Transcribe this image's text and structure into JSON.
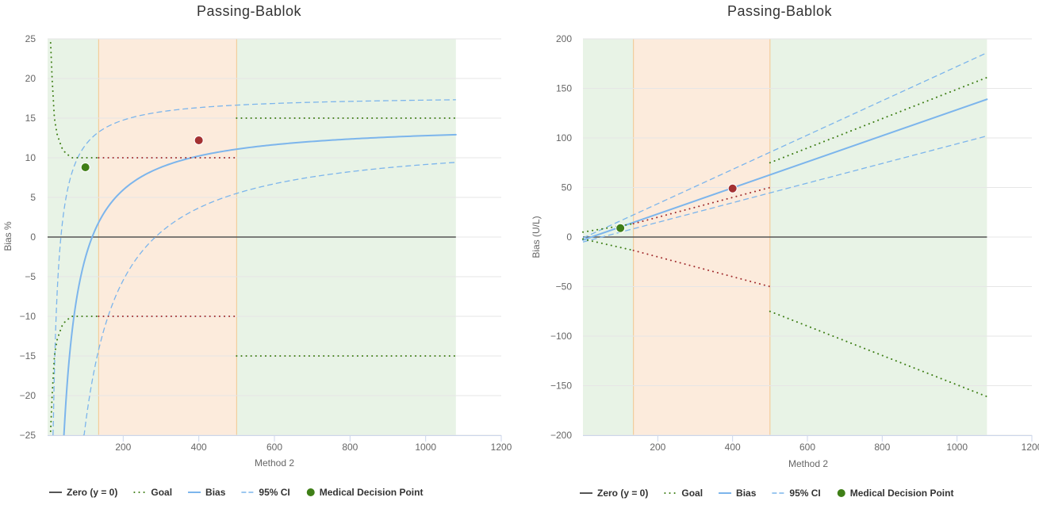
{
  "chart_data": [
    {
      "type": "line",
      "title": "Passing-Bablok",
      "xlabel": "Method 2",
      "ylabel": "Bias %",
      "xlim": [
        0,
        1200
      ],
      "ylim": [
        -25,
        25
      ],
      "xticks": [
        200,
        400,
        600,
        800,
        1000,
        1200
      ],
      "yticks": [
        -25,
        -20,
        -15,
        -10,
        -5,
        0,
        5,
        10,
        15,
        20,
        25
      ],
      "regions": [
        {
          "from": 0,
          "to": 135,
          "color": "#e8f3e6"
        },
        {
          "from": 135,
          "to": 500,
          "color": "#fcebdc"
        },
        {
          "from": 500,
          "to": 1080,
          "color": "#e8f3e6"
        }
      ],
      "series": [
        {
          "name": "Zero (y = 0)",
          "style": "zero",
          "x": [
            0,
            1080
          ],
          "y": [
            0,
            0
          ]
        },
        {
          "name": "Bias",
          "style": "bias",
          "func": "pct",
          "a": -17.1,
          "b": 14.5,
          "xmin": 5,
          "xmax": 1080
        },
        {
          "name": "95% CI",
          "style": "ci",
          "func": "pct",
          "a": -6.3,
          "b": 17.9,
          "xmin": 0,
          "xmax": 1080
        },
        {
          "name": "95% CI",
          "style": "ci",
          "func": "pct",
          "a": -36.5,
          "b": 12.8,
          "xmin": 10,
          "xmax": 1080
        },
        {
          "name": "Goal",
          "style": "goal-green",
          "x": [
            8,
            12,
            18,
            25,
            32,
            40,
            50,
            65,
            80,
            100,
            135
          ],
          "y": [
            24.5,
            20,
            15,
            13,
            12,
            11,
            10.5,
            10,
            10,
            10,
            10
          ]
        },
        {
          "name": "Goal",
          "style": "goal-green",
          "x": [
            8,
            12,
            18,
            25,
            32,
            40,
            50,
            65,
            80,
            100,
            135
          ],
          "y": [
            -24.5,
            -20,
            -15,
            -13,
            -12,
            -11,
            -10.5,
            -10,
            -10,
            -10,
            -10
          ]
        },
        {
          "name": "Goal",
          "style": "goal-red",
          "x": [
            135,
            500
          ],
          "y": [
            10,
            10
          ]
        },
        {
          "name": "Goal",
          "style": "goal-red",
          "x": [
            135,
            500
          ],
          "y": [
            -10,
            -10
          ]
        },
        {
          "name": "Goal",
          "style": "goal-green",
          "x": [
            500,
            1080
          ],
          "y": [
            15,
            15
          ]
        },
        {
          "name": "Goal",
          "style": "goal-green",
          "x": [
            500,
            1080
          ],
          "y": [
            -15,
            -15
          ]
        }
      ],
      "points": [
        {
          "name": "Medical Decision Point",
          "x": 100,
          "y": 8.8,
          "color": "#3f7f17"
        },
        {
          "name": "Medical Decision Point",
          "x": 400,
          "y": 12.2,
          "color": "#a33132"
        }
      ]
    },
    {
      "type": "line",
      "title": "Passing-Bablok",
      "xlabel": "Method 2",
      "ylabel": "Bias (U/L)",
      "xlim": [
        0,
        1200
      ],
      "ylim": [
        -200,
        200
      ],
      "xticks": [
        200,
        400,
        600,
        800,
        1000,
        1200
      ],
      "yticks": [
        -200,
        -150,
        -100,
        -50,
        0,
        50,
        100,
        150,
        200
      ],
      "regions": [
        {
          "from": 0,
          "to": 135,
          "color": "#e8f3e6"
        },
        {
          "from": 135,
          "to": 500,
          "color": "#fcebdc"
        },
        {
          "from": 500,
          "to": 1080,
          "color": "#e8f3e6"
        }
      ],
      "series": [
        {
          "name": "Zero (y = 0)",
          "style": "zero",
          "x": [
            0,
            1080
          ],
          "y": [
            0,
            0
          ]
        },
        {
          "name": "Bias",
          "style": "bias",
          "x": [
            0,
            1080
          ],
          "y": [
            -3,
            139
          ]
        },
        {
          "name": "95% CI",
          "style": "ci",
          "x": [
            0,
            1080
          ],
          "y": [
            -1,
            186
          ]
        },
        {
          "name": "95% CI",
          "style": "ci",
          "x": [
            0,
            1080
          ],
          "y": [
            -5,
            102
          ]
        },
        {
          "name": "Goal",
          "style": "goal-green",
          "x": [
            0,
            135
          ],
          "y": [
            5,
            13.5
          ]
        },
        {
          "name": "Goal",
          "style": "goal-green",
          "x": [
            0,
            135
          ],
          "y": [
            -2,
            -13.5
          ]
        },
        {
          "name": "Goal",
          "style": "goal-red",
          "x": [
            135,
            500
          ],
          "y": [
            13.5,
            50
          ]
        },
        {
          "name": "Goal",
          "style": "goal-red",
          "x": [
            135,
            500
          ],
          "y": [
            -13.5,
            -50
          ]
        },
        {
          "name": "Goal",
          "style": "goal-green",
          "x": [
            500,
            1080
          ],
          "y": [
            75,
            161
          ]
        },
        {
          "name": "Goal",
          "style": "goal-green",
          "x": [
            500,
            1080
          ],
          "y": [
            -75,
            -161
          ]
        }
      ],
      "points": [
        {
          "name": "Medical Decision Point",
          "x": 100,
          "y": 9,
          "color": "#3f7f17"
        },
        {
          "name": "Medical Decision Point",
          "x": 400,
          "y": 49,
          "color": "#a33132"
        }
      ]
    }
  ],
  "legend": [
    {
      "label": "Zero (y = 0)",
      "style": "zero"
    },
    {
      "label": "Goal",
      "style": "goal"
    },
    {
      "label": "Bias",
      "style": "bias"
    },
    {
      "label": "95% CI",
      "style": "ci"
    },
    {
      "label": "Medical Decision Point",
      "style": "point"
    }
  ],
  "colors": {
    "zero": "#555555",
    "bias": "#7cb5ec",
    "ci": "#7cb5ec",
    "goal_green": "#3f7f17",
    "goal_red": "#a33132",
    "point_legend": "#3f7f17",
    "grid": "#e6e6e6",
    "band_border": "#f3c78f"
  }
}
